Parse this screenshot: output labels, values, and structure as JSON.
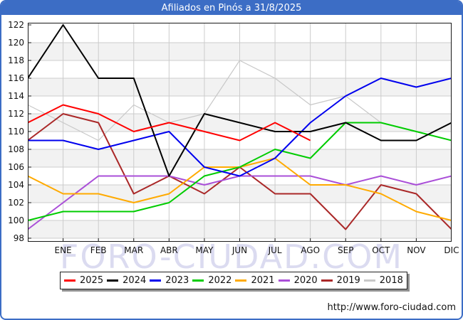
{
  "window": {
    "title": "Afiliados en Pinós a 31/8/2025",
    "watermark": "FORO-CIUDAD.COM",
    "url": "http://www.foro-ciudad.com",
    "accent_color": "#3c6dc5"
  },
  "chart_data": {
    "type": "line",
    "title": "Afiliados en Pinós a 31/8/2025",
    "categories": [
      "ENE",
      "FEB",
      "MAR",
      "ABR",
      "MAY",
      "JUN",
      "JUL",
      "AGO",
      "SEP",
      "OCT",
      "NOV",
      "DIC"
    ],
    "first_point_note": "first value of each series is the previous year's December, plotted at the left axis edge",
    "ylim": [
      98,
      122
    ],
    "ytick_step": 2,
    "yticks": [
      98,
      100,
      102,
      104,
      106,
      108,
      110,
      112,
      114,
      116,
      118,
      120,
      122
    ],
    "grid": true,
    "band_color": "#f2f2f2",
    "grid_color": "#cccccc",
    "legend_position": "bottom",
    "series": [
      {
        "name": "2025",
        "color": "#ff0000",
        "values": [
          111,
          113,
          112,
          110,
          111,
          110,
          109,
          111,
          109
        ]
      },
      {
        "name": "2024",
        "color": "#000000",
        "values": [
          116,
          122,
          116,
          116,
          105,
          112,
          111,
          110,
          110,
          111,
          109,
          109,
          111
        ]
      },
      {
        "name": "2023",
        "color": "#0000ee",
        "values": [
          109,
          109,
          108,
          109,
          110,
          106,
          105,
          107,
          111,
          114,
          116,
          115,
          116
        ]
      },
      {
        "name": "2022",
        "color": "#00cc00",
        "values": [
          100,
          101,
          101,
          101,
          102,
          105,
          106,
          108,
          107,
          111,
          111,
          110,
          109
        ]
      },
      {
        "name": "2021",
        "color": "#ffaa00",
        "values": [
          105,
          103,
          103,
          102,
          103,
          106,
          106,
          107,
          104,
          104,
          103,
          101,
          100
        ]
      },
      {
        "name": "2020",
        "color": "#aa4fd8",
        "values": [
          99,
          102,
          105,
          105,
          105,
          104,
          105,
          105,
          105,
          104,
          105,
          104,
          105
        ]
      },
      {
        "name": "2019",
        "color": "#aa2828",
        "values": [
          109,
          112,
          111,
          103,
          105,
          103,
          106,
          103,
          103,
          99,
          104,
          103,
          99
        ]
      },
      {
        "name": "2018",
        "color": "#c8c8c8",
        "values": [
          113,
          111,
          109,
          113,
          111,
          112,
          118,
          116,
          113,
          114,
          111,
          110,
          109
        ]
      }
    ]
  }
}
